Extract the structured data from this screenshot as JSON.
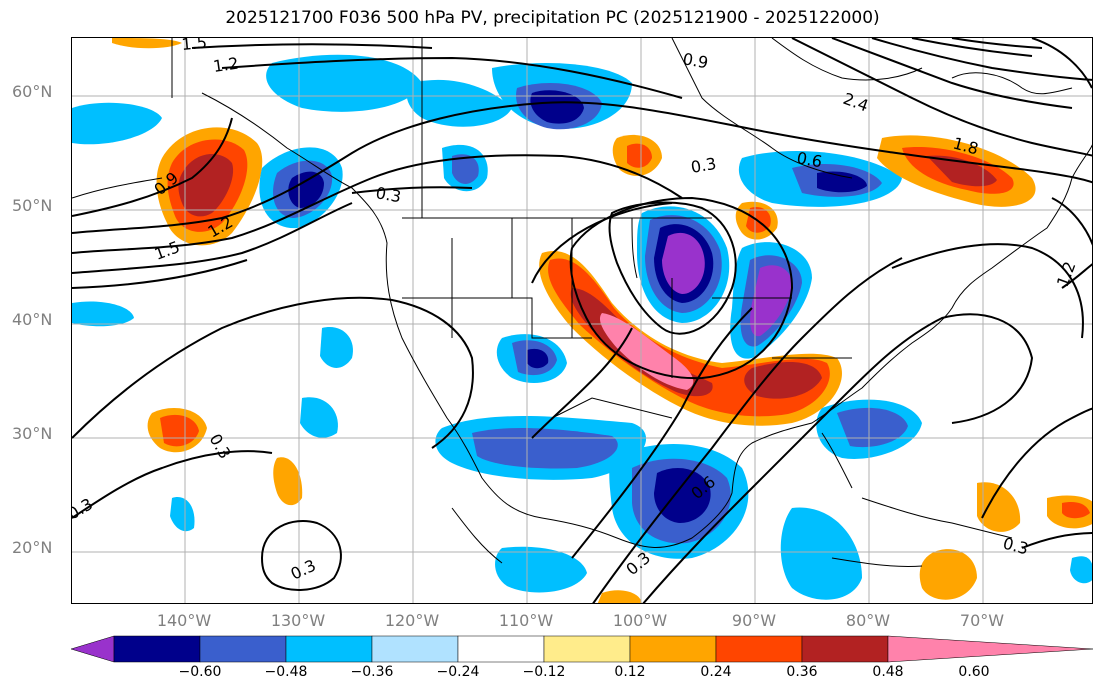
{
  "title": "2025121700 F036 500 hPa PV, precipitation PC (2025121900 - 2025122000)",
  "lat_labels": [
    "60°N",
    "50°N",
    "40°N",
    "30°N",
    "20°N"
  ],
  "lon_labels": [
    "140°W",
    "130°W",
    "120°W",
    "110°W",
    "100°W",
    "90°W",
    "80°W",
    "70°W"
  ],
  "colorbar": {
    "ticks": [
      "−0.60",
      "−0.48",
      "−0.36",
      "−0.24",
      "−0.12",
      "0.12",
      "0.24",
      "0.36",
      "0.48",
      "0.60"
    ],
    "colors": [
      "#9932cc",
      "#00008b",
      "#3a5fcd",
      "#00bfff",
      "#b0e2ff",
      "#ffffff",
      "#ffec8b",
      "#ffa500",
      "#ff4500",
      "#b22222",
      "#ff82ab"
    ]
  },
  "contour_labels": [
    "1.5",
    "1.2",
    "0.9",
    "0.6",
    "0.3",
    "1.8",
    "2.4",
    "0.3",
    "0.3",
    "0.3",
    "0.6",
    "1.2",
    "1.5",
    "0.9",
    "0.3",
    "0.3",
    "0.3",
    "1.2"
  ],
  "map": {
    "lat_range": [
      15,
      65
    ],
    "lon_range": [
      -150,
      -60
    ],
    "gridlines": true,
    "contour_color": "#000000"
  }
}
